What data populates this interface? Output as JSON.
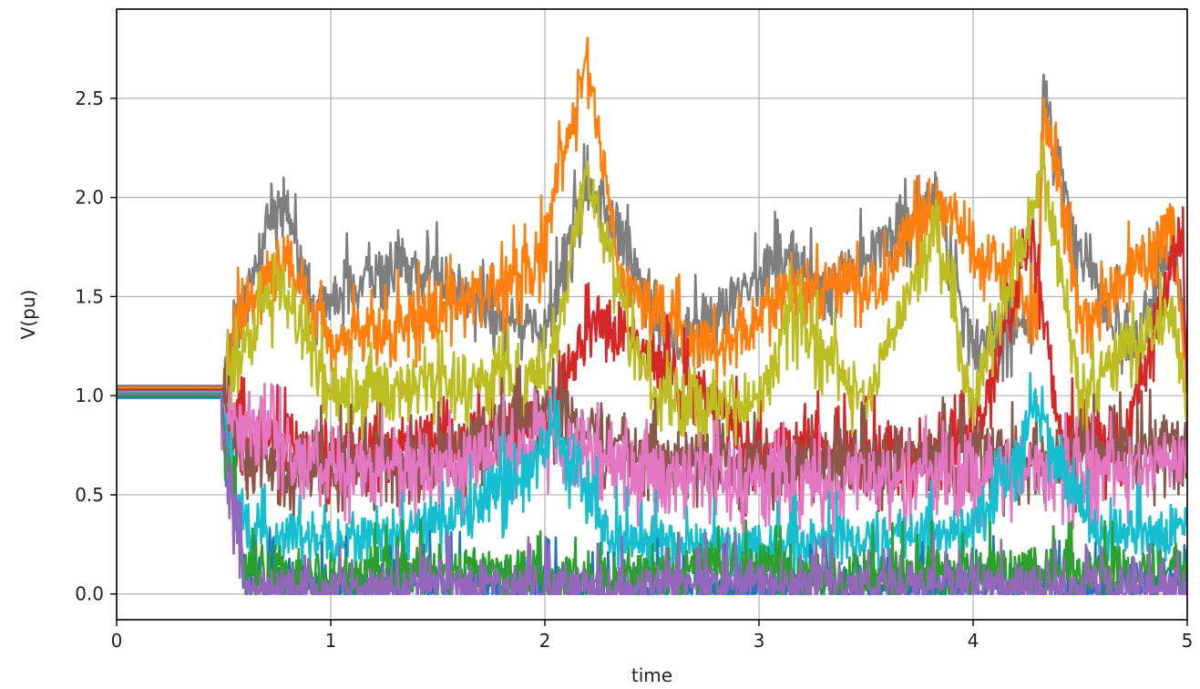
{
  "chart_data": {
    "type": "line",
    "title": "",
    "xlabel": "time",
    "ylabel": "V(pu)",
    "xlim": [
      0,
      5
    ],
    "ylim": [
      -0.13,
      2.95
    ],
    "xticks": [
      0,
      1,
      2,
      3,
      4,
      5
    ],
    "xtick_labels": [
      "0",
      "1",
      "2",
      "3",
      "4",
      "5"
    ],
    "yticks": [
      0.0,
      0.5,
      1.0,
      1.5,
      2.0,
      2.5
    ],
    "ytick_labels": [
      "0.0",
      "0.5",
      "1.0",
      "1.5",
      "2.0",
      "2.5"
    ],
    "grid": true,
    "legend": "none",
    "event_time": 0.49,
    "colors": [
      "#1f77b4",
      "#ff7f0e",
      "#2ca02c",
      "#d62728",
      "#9467bd",
      "#8c564b",
      "#e377c2",
      "#7f7f7f",
      "#bcbd22",
      "#17becf"
    ],
    "series": [
      {
        "color": "#7f7f7f",
        "x": [
          0,
          0.49,
          0.55,
          0.78,
          0.9,
          1.02,
          1.33,
          1.48,
          1.75,
          2.0,
          2.2,
          2.35,
          2.6,
          2.88,
          3.15,
          3.3,
          3.55,
          3.67,
          3.83,
          4.0,
          4.3,
          4.33,
          4.48,
          4.75,
          4.93,
          5.0
        ],
        "y": [
          1.05,
          1.05,
          1.45,
          2.1,
          1.55,
          1.6,
          1.75,
          1.7,
          1.5,
          1.42,
          2.2,
          1.92,
          1.35,
          1.57,
          1.8,
          1.62,
          1.82,
          1.96,
          2.1,
          1.3,
          1.5,
          2.62,
          1.86,
          1.3,
          1.95,
          1.25
        ]
      },
      {
        "color": "#ff7f0e",
        "x": [
          0,
          0.49,
          0.55,
          0.78,
          1.0,
          1.48,
          1.96,
          2.2,
          2.35,
          2.8,
          3.15,
          3.57,
          3.67,
          3.83,
          4.3,
          4.33,
          4.4,
          4.5,
          4.93,
          5.0
        ],
        "y": [
          1.04,
          1.04,
          1.45,
          1.8,
          1.35,
          1.5,
          1.72,
          2.8,
          1.65,
          1.32,
          1.65,
          1.62,
          1.85,
          2.08,
          1.5,
          2.5,
          2.2,
          1.45,
          1.95,
          1.2
        ]
      },
      {
        "color": "#d62728",
        "x": [
          0,
          0.49,
          0.6,
          1.0,
          1.5,
          2.0,
          2.25,
          3.0,
          3.5,
          4.0,
          4.28,
          4.4,
          4.7,
          4.98,
          5.0
        ],
        "y": [
          1.03,
          1.03,
          0.9,
          0.82,
          0.88,
          0.95,
          1.5,
          0.85,
          0.8,
          0.85,
          1.9,
          0.9,
          0.85,
          1.95,
          0.85
        ]
      },
      {
        "color": "#bcbd22",
        "x": [
          0,
          0.49,
          0.55,
          0.78,
          1.0,
          1.5,
          2.0,
          2.2,
          2.5,
          3.0,
          3.15,
          3.5,
          3.83,
          4.0,
          4.33,
          4.5,
          4.93,
          5.0
        ],
        "y": [
          1.02,
          1.02,
          1.3,
          1.65,
          1.1,
          1.15,
          1.2,
          2.18,
          1.1,
          1.05,
          1.5,
          1.05,
          1.95,
          1.05,
          2.25,
          1.1,
          1.5,
          1.0
        ]
      },
      {
        "color": "#8c564b",
        "x": [
          0,
          0.49,
          0.6,
          1.0,
          1.5,
          2.0,
          2.5,
          3.0,
          3.5,
          4.0,
          4.5,
          5.0
        ],
        "y": [
          1.01,
          1.01,
          0.8,
          0.75,
          0.8,
          1.02,
          0.8,
          0.75,
          0.78,
          0.82,
          0.8,
          0.85
        ]
      },
      {
        "color": "#e377c2",
        "x": [
          0,
          0.49,
          0.6,
          1.0,
          1.5,
          2.0,
          2.5,
          3.0,
          3.5,
          4.0,
          4.5,
          5.0
        ],
        "y": [
          1.0,
          1.0,
          0.95,
          0.72,
          0.75,
          0.9,
          0.72,
          0.7,
          0.7,
          0.75,
          0.72,
          0.78
        ]
      },
      {
        "color": "#17becf",
        "x": [
          0,
          0.49,
          0.6,
          1.0,
          1.5,
          1.98,
          2.05,
          2.3,
          3.0,
          3.5,
          4.0,
          4.3,
          4.6,
          5.0
        ],
        "y": [
          1.02,
          1.02,
          0.4,
          0.35,
          0.4,
          0.8,
          1.0,
          0.35,
          0.3,
          0.35,
          0.4,
          1.02,
          0.35,
          0.4
        ]
      },
      {
        "color": "#1f77b4",
        "x": [
          0,
          0.49,
          0.6,
          1.0,
          1.5,
          2.0,
          2.5,
          3.0,
          3.5,
          4.0,
          4.5,
          5.0
        ],
        "y": [
          0.99,
          0.99,
          0.15,
          0.1,
          0.12,
          0.1,
          0.08,
          0.1,
          0.1,
          0.12,
          0.1,
          0.15
        ]
      },
      {
        "color": "#2ca02c",
        "x": [
          0,
          0.49,
          0.6,
          1.0,
          1.5,
          2.0,
          2.5,
          3.0,
          3.5,
          4.0,
          4.5,
          5.0
        ],
        "y": [
          1.0,
          1.0,
          0.2,
          0.15,
          0.2,
          0.15,
          0.18,
          0.2,
          0.15,
          0.2,
          0.18,
          0.2
        ]
      },
      {
        "color": "#9467bd",
        "x": [
          0,
          0.49,
          0.6,
          1.0,
          1.5,
          2.0,
          2.5,
          3.0,
          3.5,
          4.0,
          4.5,
          5.0
        ],
        "y": [
          1.01,
          1.01,
          0.1,
          0.08,
          0.12,
          0.1,
          0.1,
          0.12,
          0.1,
          0.12,
          0.1,
          0.1
        ]
      }
    ]
  }
}
